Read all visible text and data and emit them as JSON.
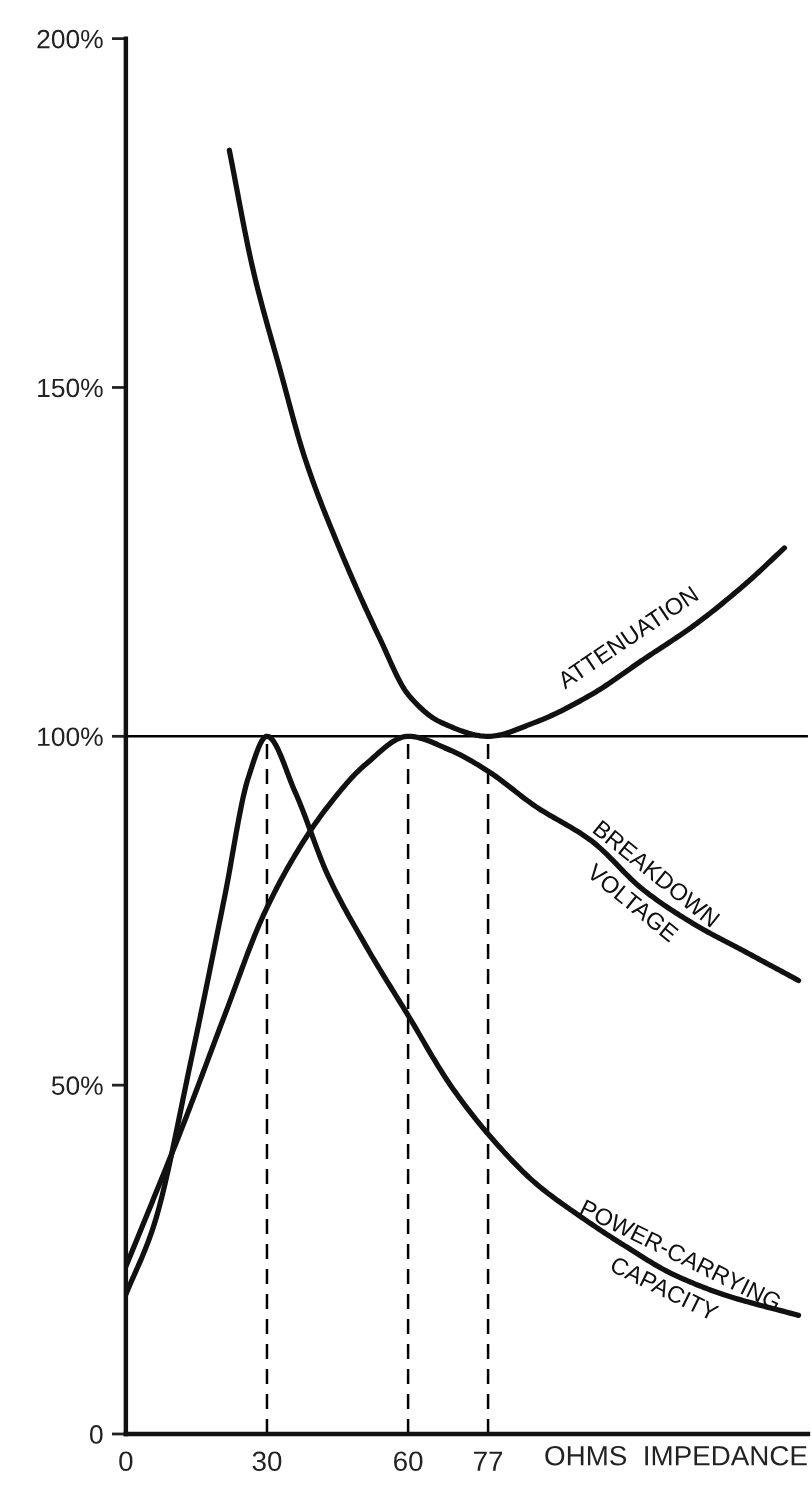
{
  "chart_data": {
    "type": "line",
    "xlabel": "OHMS  IMPEDANCE",
    "xlim": [
      0,
      145
    ],
    "xticks": [
      0,
      30,
      60,
      77
    ],
    "ylim": [
      0,
      200
    ],
    "yticks": [
      0,
      {
        "value": 50,
        "label": "50%"
      },
      {
        "value": 100,
        "label": "100%"
      },
      {
        "value": 150,
        "label": "150%"
      },
      {
        "value": 200,
        "label": "200%"
      }
    ],
    "ref_lines": [
      {
        "axis": "y",
        "value": 100,
        "color": "#000000",
        "line_style": "solid"
      },
      {
        "axis": "x",
        "value": 30,
        "color": "#000000",
        "line_style": "dashed"
      },
      {
        "axis": "x",
        "value": 60,
        "color": "#000000",
        "line_style": "dashed"
      },
      {
        "axis": "x",
        "value": 77,
        "color": "#000000",
        "line_style": "dashed"
      }
    ],
    "series": [
      {
        "name": "ATTENUATION",
        "color": "#111111",
        "x": [
          22,
          27,
          33,
          38,
          46,
          54,
          60,
          67,
          77,
          87,
          99,
          110,
          121,
          132,
          140
        ],
        "values": [
          184,
          167,
          152,
          140,
          126,
          114,
          106,
          102,
          100,
          102,
          106,
          111,
          116,
          122,
          127
        ]
      },
      {
        "name": "BREAKDOWN\nVOLTAGE",
        "color": "#111111",
        "x": [
          0,
          12,
          21,
          29,
          36,
          43,
          51,
          60,
          69,
          77,
          87,
          99,
          110,
          121,
          132,
          143
        ],
        "values": [
          24,
          44,
          60,
          74,
          83,
          90,
          96,
          100,
          98,
          95,
          90,
          85,
          78,
          73,
          69,
          65
        ]
      },
      {
        "name": "POWER-CARRYING\nCAPACITY",
        "color": "#111111",
        "x": [
          0,
          6,
          14,
          21,
          26,
          30,
          36,
          43,
          51,
          60,
          69,
          77,
          87,
          97,
          106,
          116,
          127,
          143
        ],
        "values": [
          20,
          30,
          54,
          77,
          94,
          100,
          92,
          80,
          70,
          60,
          50,
          43,
          36,
          31,
          27,
          23,
          20,
          17
        ]
      }
    ]
  }
}
